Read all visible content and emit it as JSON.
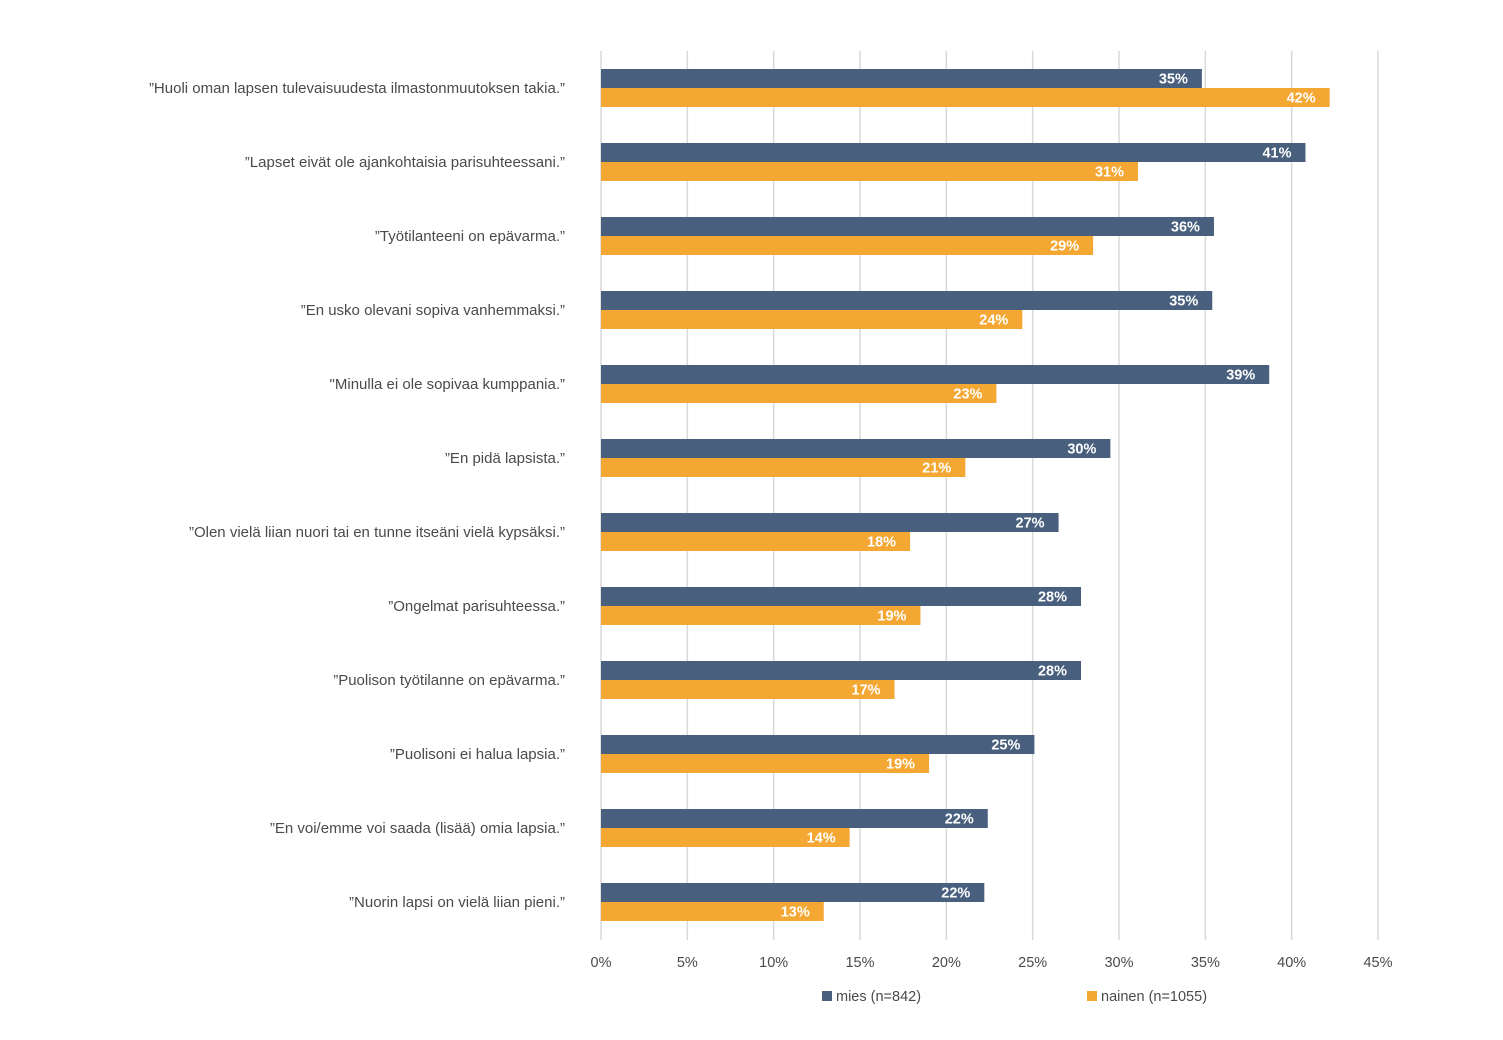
{
  "chart_data": {
    "type": "bar",
    "orientation": "horizontal",
    "categories": [
      "”Huoli oman lapsen tulevaisuudesta ilmastonmuutoksen takia.”",
      "”Lapset eivät ole ajankohtaisia parisuhteessani.”",
      "”Työtilanteeni on epävarma.”",
      "”En usko olevani sopiva vanhemmaksi.”",
      "\"Minulla ei ole sopivaa kumppania.”",
      "”En pidä lapsista.”",
      "”Olen vielä liian nuori tai en tunne itseäni vielä kypsäksi.”",
      "”Ongelmat parisuhteessa.”",
      "”Puolison työtilanne on epävarma.”",
      "”Puolisoni ei halua lapsia.”",
      "”En voi/emme voi saada (lisää) omia lapsia.”",
      "”Nuorin lapsi on vielä liian pieni.”"
    ],
    "series": [
      {
        "name": "mies (n=842)",
        "color": "#485F7E",
        "values": [
          34.8,
          40.8,
          35.5,
          35.4,
          38.7,
          29.5,
          26.5,
          27.8,
          27.8,
          25.1,
          22.4,
          22.2
        ],
        "labels": [
          "35%",
          "41%",
          "36%",
          "35%",
          "39%",
          "30%",
          "27%",
          "28%",
          "28%",
          "25%",
          "22%",
          "22%"
        ]
      },
      {
        "name": "nainen (n=1055)",
        "color": "#F5A733",
        "values": [
          42.2,
          31.1,
          28.5,
          24.4,
          22.9,
          21.1,
          17.9,
          18.5,
          17.0,
          19.0,
          14.4,
          12.9
        ],
        "labels": [
          "42%",
          "31%",
          "29%",
          "24%",
          "23%",
          "21%",
          "18%",
          "19%",
          "17%",
          "19%",
          "14%",
          "13%"
        ]
      }
    ],
    "xlim": [
      0,
      45
    ],
    "xticks": [
      0,
      5,
      10,
      15,
      20,
      25,
      30,
      35,
      40,
      45
    ],
    "xtick_labels": [
      "0%",
      "5%",
      "10%",
      "15%",
      "20%",
      "25%",
      "30%",
      "35%",
      "40%",
      "45%"
    ],
    "title": "",
    "xlabel": "",
    "ylabel": "",
    "grid": true,
    "legend_position": "bottom",
    "gridline_color": "#D9D9D9"
  }
}
